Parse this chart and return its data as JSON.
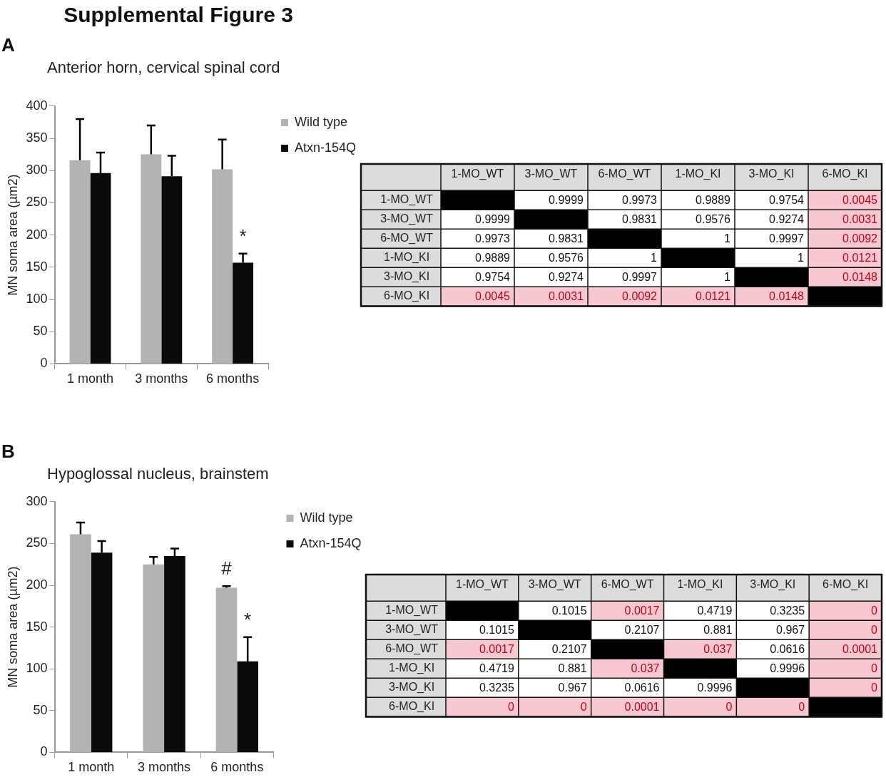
{
  "chart_data": [
    {
      "type": "bar",
      "title": "Supplemental Figure 3",
      "subtitle": "Anterior horn, cervical spinal cord",
      "annotations": [
        "A",
        {
          "text": "*",
          "x": "6 months",
          "y": 171
        }
      ],
      "categories": [
        "1 month",
        "3 months",
        "6 months"
      ],
      "ylabel": "MN soma area (µm2)",
      "series": [
        {
          "name": "Wild type",
          "color": "#b3b3b3",
          "values": [
            316,
            325,
            302
          ],
          "errors": [
            64,
            45,
            46
          ]
        },
        {
          "name": "Atxn-154Q",
          "color": "#0a0a0a",
          "values": [
            296,
            291,
            157
          ],
          "errors": [
            32,
            32,
            14
          ]
        }
      ],
      "ylim": [
        0,
        400
      ],
      "yticks": [
        0,
        50,
        100,
        150,
        200,
        250,
        300,
        350,
        400
      ],
      "legend": "top right"
    },
    {
      "type": "heatmap",
      "data_labels": true,
      "categories": [
        "1-MO_WT",
        "3-MO_WT",
        "6-MO_WT",
        "1-MO_KI",
        "3-MO_KI",
        "6-MO_KI"
      ],
      "y_categories": [
        "1-MO_WT",
        "3-MO_WT",
        "6-MO_WT",
        "1-MO_KI",
        "3-MO_KI",
        "6-MO_KI"
      ],
      "cells": [
        [
          null,
          0.9999,
          0.9973,
          0.9889,
          0.9754,
          0.0045
        ],
        [
          0.9999,
          null,
          0.9831,
          0.9576,
          0.9274,
          0.0031
        ],
        [
          0.9973,
          0.9831,
          null,
          1,
          0.9997,
          0.0092
        ],
        [
          0.9889,
          0.9576,
          1,
          null,
          1,
          0.0121
        ],
        [
          0.9754,
          0.9274,
          0.9997,
          1,
          null,
          0.0148
        ],
        [
          0.0045,
          0.0031,
          0.0092,
          0.0121,
          0.0148,
          null
        ]
      ],
      "colors": [
        [
          "#000000",
          "#ffffff",
          "#ffffff",
          "#ffffff",
          "#ffffff",
          "#f8c8d0"
        ],
        [
          "#ffffff",
          "#000000",
          "#ffffff",
          "#ffffff",
          "#ffffff",
          "#f8c8d0"
        ],
        [
          "#ffffff",
          "#ffffff",
          "#000000",
          "#ffffff",
          "#ffffff",
          "#f8c8d0"
        ],
        [
          "#ffffff",
          "#ffffff",
          "#ffffff",
          "#000000",
          "#ffffff",
          "#f8c8d0"
        ],
        [
          "#ffffff",
          "#ffffff",
          "#ffffff",
          "#ffffff",
          "#000000",
          "#f8c8d0"
        ],
        [
          "#f8c8d0",
          "#f8c8d0",
          "#f8c8d0",
          "#f8c8d0",
          "#f8c8d0",
          "#000000"
        ]
      ]
    },
    {
      "type": "bar",
      "subtitle": "Hypoglossal nucleus, brainstem",
      "annotations": [
        "B",
        {
          "text": "#",
          "x": "6 months",
          "y": 199
        },
        {
          "text": "*",
          "x": "6 months",
          "y": 138
        }
      ],
      "categories": [
        "1 month",
        "3 months",
        "6 months"
      ],
      "ylabel": "MN soma area (µm2)",
      "series": [
        {
          "name": "Wild type",
          "color": "#b3b3b3",
          "values": [
            261,
            225,
            197
          ],
          "errors": [
            14,
            9,
            2
          ]
        },
        {
          "name": "Atxn-154Q",
          "color": "#0a0a0a",
          "values": [
            239,
            235,
            109
          ],
          "errors": [
            14,
            9,
            29
          ]
        }
      ],
      "ylim": [
        0,
        300
      ],
      "yticks": [
        0,
        50,
        100,
        150,
        200,
        250,
        300
      ],
      "legend": "top right"
    },
    {
      "type": "heatmap",
      "data_labels": true,
      "categories": [
        "1-MO_WT",
        "3-MO_WT",
        "6-MO_WT",
        "1-MO_KI",
        "3-MO_KI",
        "6-MO_KI"
      ],
      "y_categories": [
        "1-MO_WT",
        "3-MO_WT",
        "6-MO_WT",
        "1-MO_KI",
        "3-MO_KI",
        "6-MO_KI"
      ],
      "cells": [
        [
          null,
          0.1015,
          0.0017,
          0.4719,
          0.3235,
          0
        ],
        [
          0.1015,
          null,
          0.2107,
          0.881,
          0.967,
          0
        ],
        [
          0.0017,
          0.2107,
          null,
          0.037,
          0.0616,
          0.0001
        ],
        [
          0.4719,
          0.881,
          0.037,
          null,
          0.9996,
          0
        ],
        [
          0.3235,
          0.967,
          0.0616,
          0.9996,
          null,
          0
        ],
        [
          0,
          0,
          0.0001,
          0,
          0,
          null
        ]
      ],
      "colors": [
        [
          "#000000",
          "#ffffff",
          "#f8c8d0",
          "#ffffff",
          "#ffffff",
          "#f8c8d0"
        ],
        [
          "#ffffff",
          "#000000",
          "#ffffff",
          "#ffffff",
          "#ffffff",
          "#f8c8d0"
        ],
        [
          "#f8c8d0",
          "#ffffff",
          "#000000",
          "#f8c8d0",
          "#ffffff",
          "#f8c8d0"
        ],
        [
          "#ffffff",
          "#ffffff",
          "#f8c8d0",
          "#000000",
          "#ffffff",
          "#f8c8d0"
        ],
        [
          "#ffffff",
          "#ffffff",
          "#ffffff",
          "#ffffff",
          "#000000",
          "#f8c8d0"
        ],
        [
          "#f8c8d0",
          "#f8c8d0",
          "#f8c8d0",
          "#f8c8d0",
          "#f8c8d0",
          "#000000"
        ]
      ]
    }
  ]
}
